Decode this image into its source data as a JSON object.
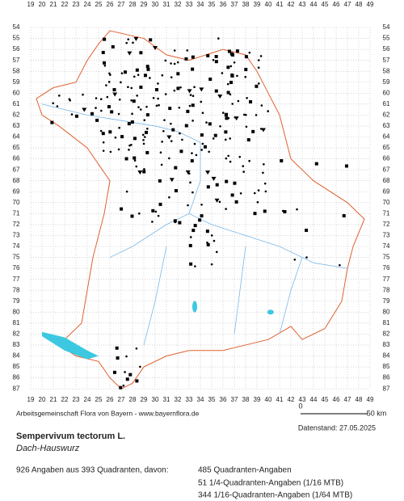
{
  "grid": {
    "columns": [
      19,
      20,
      21,
      22,
      23,
      24,
      25,
      26,
      27,
      28,
      29,
      30,
      31,
      32,
      33,
      34,
      35,
      36,
      37,
      38,
      39,
      40,
      41,
      42,
      43,
      44,
      45,
      46,
      47,
      48,
      49
    ],
    "rows": [
      54,
      55,
      56,
      57,
      58,
      59,
      60,
      61,
      62,
      63,
      64,
      65,
      66,
      67,
      68,
      69,
      70,
      71,
      72,
      73,
      74,
      75,
      76,
      77,
      78,
      79,
      80,
      81,
      82,
      83,
      84,
      85,
      86,
      87
    ]
  },
  "scale": {
    "start": "0",
    "end": "50 km"
  },
  "credit": "Arbeitsgemeinschaft Flora von Bayern - www.bayernflora.de",
  "date": "Datenstand: 27.05.2025",
  "species": {
    "name": "Sempervivum tectorum L.",
    "common_name": "Dach-Hauswurz"
  },
  "summary": "926 Angaben aus 393 Quadranten, davon:",
  "breakdown": [
    "485 Quadranten-Angaben",
    "51 1/4-Quadranten-Angaben (1/16 MTB)",
    "344 1/16-Quadranten-Angaben (1/64 MTB)"
  ]
}
